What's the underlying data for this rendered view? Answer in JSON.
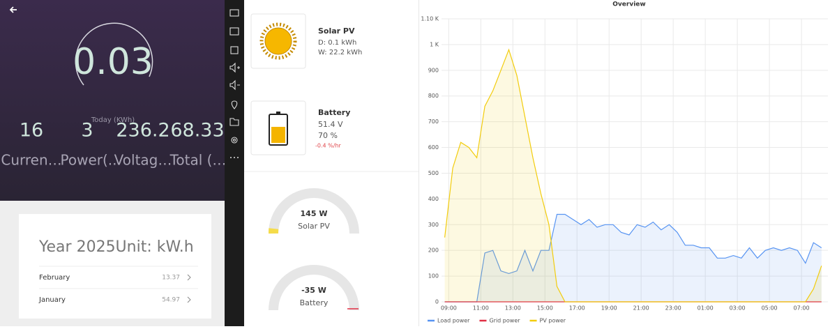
{
  "phone": {
    "today_value": "0.03",
    "today_label": "Today (KWh)",
    "stats": [
      {
        "value": "16",
        "label": "Curren…"
      },
      {
        "value": "3",
        "label": "Power(.."
      },
      {
        "value": "236.2",
        "label": "Voltag…"
      },
      {
        "value": "68.33",
        "label": "Total (…"
      }
    ],
    "year_card": {
      "title": "Year 2025Unit: kW.h",
      "rows": [
        {
          "month": "February",
          "value": "13.37"
        },
        {
          "month": "January",
          "value": "54.97"
        }
      ]
    }
  },
  "dashboard": {
    "solar": {
      "title": "Solar PV",
      "day": "D: 0.1 kWh",
      "week": "W: 22.2 kWh"
    },
    "battery": {
      "title": "Battery",
      "voltage": "51.4 V",
      "charge": "70 %",
      "rate": "-0.4 %/hr"
    },
    "gauges": [
      {
        "value": "145 W",
        "label": "Solar PV"
      },
      {
        "value": "-35 W",
        "label": "Battery"
      }
    ]
  },
  "chart_data": {
    "type": "line",
    "title": "Overview",
    "x": [
      8.75,
      9.25,
      9.75,
      10.25,
      10.75,
      11.25,
      11.75,
      12.25,
      12.75,
      13.25,
      13.75,
      14.25,
      14.75,
      15.25,
      15.75,
      16.25,
      16.75,
      17.25,
      17.75,
      18.25,
      18.75,
      19.25,
      19.75,
      20.25,
      20.75,
      21.25,
      21.75,
      22.25,
      22.75,
      23.25,
      23.75,
      24.25,
      24.75,
      25.25,
      25.75,
      26.25,
      26.75,
      27.25,
      27.75,
      28.25,
      28.75,
      29.25,
      29.75,
      30.25,
      30.75,
      31.25,
      31.75,
      32.25
    ],
    "series": [
      {
        "name": "Load power",
        "color": "#5794f2",
        "values": [
          0,
          0,
          0,
          0,
          0,
          190,
          200,
          120,
          110,
          120,
          200,
          120,
          200,
          200,
          340,
          340,
          320,
          300,
          320,
          290,
          300,
          300,
          270,
          260,
          300,
          290,
          310,
          280,
          300,
          270,
          220,
          220,
          210,
          210,
          170,
          170,
          180,
          170,
          210,
          170,
          200,
          210,
          200,
          210,
          200,
          150,
          230,
          210
        ]
      },
      {
        "name": "Grid power",
        "color": "#e02f44",
        "values": [
          0,
          0,
          0,
          0,
          0,
          0,
          0,
          0,
          0,
          0,
          0,
          0,
          0,
          0,
          0,
          0,
          0,
          0,
          0,
          0,
          0,
          0,
          0,
          0,
          0,
          0,
          0,
          0,
          0,
          0,
          0,
          0,
          0,
          0,
          0,
          0,
          0,
          0,
          0,
          0,
          0,
          0,
          0,
          0,
          0,
          0,
          0,
          0
        ]
      },
      {
        "name": "PV power",
        "color": "#f2cc0c",
        "values": [
          250,
          520,
          620,
          600,
          560,
          760,
          820,
          900,
          980,
          880,
          720,
          560,
          420,
          300,
          60,
          0,
          0,
          0,
          0,
          0,
          0,
          0,
          0,
          0,
          0,
          0,
          0,
          0,
          0,
          0,
          0,
          0,
          0,
          0,
          0,
          0,
          0,
          0,
          0,
          0,
          0,
          0,
          0,
          0,
          0,
          0,
          50,
          140
        ]
      }
    ],
    "xlim": [
      8.55,
      32.65
    ],
    "xticks": [
      {
        "value": 9,
        "label": "09:00"
      },
      {
        "value": 11,
        "label": "11:00"
      },
      {
        "value": 13,
        "label": "13:00"
      },
      {
        "value": 15,
        "label": "15:00"
      },
      {
        "value": 17,
        "label": "17:00"
      },
      {
        "value": 19,
        "label": "19:00"
      },
      {
        "value": 21,
        "label": "21:00"
      },
      {
        "value": 23,
        "label": "23:00"
      },
      {
        "value": 25,
        "label": "01:00"
      },
      {
        "value": 27,
        "label": "03:00"
      },
      {
        "value": 29,
        "label": "05:00"
      },
      {
        "value": 31,
        "label": "07:00"
      }
    ],
    "ylim": [
      0,
      1100
    ],
    "yticks": [
      0,
      100,
      200,
      300,
      400,
      500,
      600,
      700,
      800,
      900,
      {
        "value": 1000,
        "label": "1 K"
      },
      {
        "value": 1100,
        "label": "1.10 K"
      }
    ],
    "grid": true,
    "legend": "bottom"
  }
}
